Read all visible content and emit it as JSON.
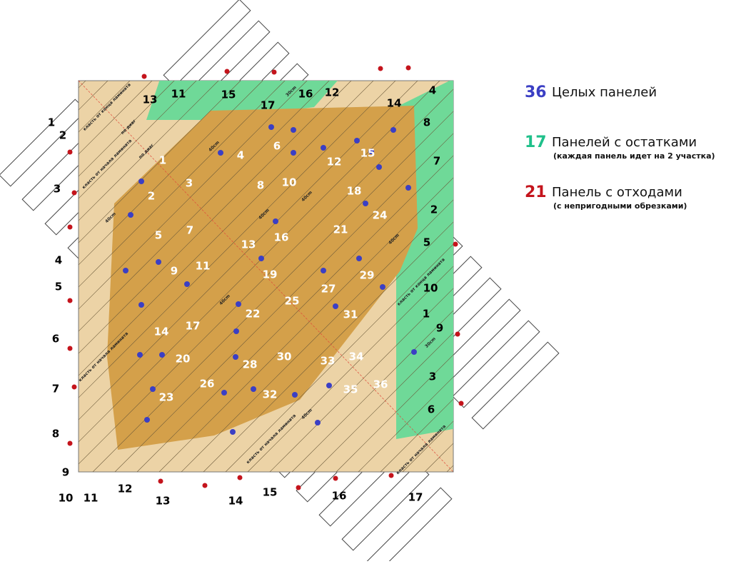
{
  "legend": [
    {
      "count": 36,
      "label": "Целых панелей",
      "color": "#3b3fc4"
    },
    {
      "count": 17,
      "label": "Панелей с остатками",
      "note": "(каждая панель идет на 2 участка)",
      "color": "#1fc08a"
    },
    {
      "count": 21,
      "label": "Панель с отходами",
      "note": "(с непригодными обрезками)",
      "color": "#c4141c"
    }
  ],
  "row_numbers": [
    1,
    2,
    3,
    4,
    5,
    6,
    7,
    8,
    9,
    10,
    11,
    12,
    13,
    14,
    15,
    16,
    17
  ],
  "whole_panel_numbers": [
    1,
    2,
    3,
    4,
    5,
    6,
    7,
    8,
    9,
    10,
    11,
    12,
    13,
    14,
    15,
    16,
    17,
    18,
    19,
    20,
    21,
    22,
    23,
    24,
    25,
    26,
    27,
    28,
    29,
    30,
    31,
    32,
    33,
    34,
    35,
    36
  ],
  "remainder_panel_numbers": [
    13,
    11,
    15,
    17,
    16,
    12,
    14,
    4,
    8,
    7,
    2,
    5,
    10,
    1,
    9,
    3,
    6
  ],
  "notes": [
    "класть от конца ламината",
    "класть от начала ламината",
    "по диаг",
    "40cm",
    "30cm"
  ]
}
